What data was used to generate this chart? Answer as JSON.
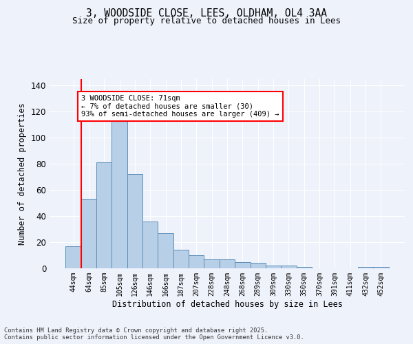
{
  "title_line1": "3, WOODSIDE CLOSE, LEES, OLDHAM, OL4 3AA",
  "title_line2": "Size of property relative to detached houses in Lees",
  "xlabel": "Distribution of detached houses by size in Lees",
  "ylabel": "Number of detached properties",
  "bar_color": "#b8cfe8",
  "bar_edge_color": "#5b8db8",
  "categories": [
    "44sqm",
    "64sqm",
    "85sqm",
    "105sqm",
    "126sqm",
    "146sqm",
    "166sqm",
    "187sqm",
    "207sqm",
    "228sqm",
    "248sqm",
    "268sqm",
    "289sqm",
    "309sqm",
    "330sqm",
    "350sqm",
    "370sqm",
    "391sqm",
    "411sqm",
    "432sqm",
    "452sqm"
  ],
  "values": [
    17,
    53,
    81,
    113,
    72,
    36,
    27,
    14,
    10,
    7,
    7,
    5,
    4,
    2,
    2,
    1,
    0,
    0,
    0,
    1,
    1
  ],
  "red_line_index": 1,
  "annotation_text": "3 WOODSIDE CLOSE: 71sqm\n← 7% of detached houses are smaller (30)\n93% of semi-detached houses are larger (409) →",
  "ylim": [
    0,
    145
  ],
  "yticks": [
    0,
    20,
    40,
    60,
    80,
    100,
    120,
    140
  ],
  "background_color": "#eef2fb",
  "grid_color": "#ffffff",
  "footer_line1": "Contains HM Land Registry data © Crown copyright and database right 2025.",
  "footer_line2": "Contains public sector information licensed under the Open Government Licence v3.0.",
  "figsize": [
    6.0,
    5.0
  ],
  "dpi": 100
}
